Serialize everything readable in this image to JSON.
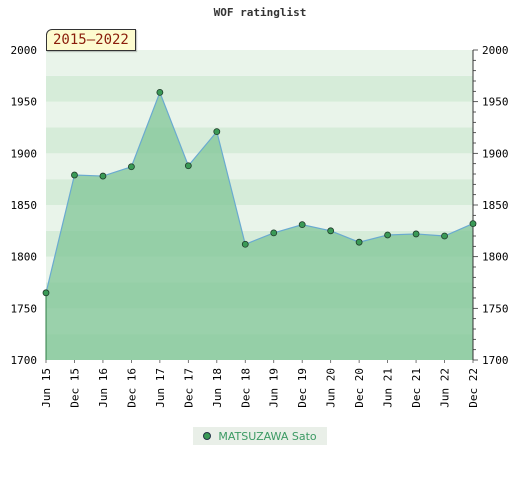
{
  "header": {
    "title": "WOF ratinglist"
  },
  "badge": {
    "text": "2015–2022"
  },
  "legend": {
    "label": "MATSUZAWA Sato"
  },
  "colors": {
    "fill": "#7cc493",
    "line": "#6aaad0",
    "marker": "#3a9a56"
  },
  "chart_data": {
    "type": "area",
    "title": "WOF ratinglist",
    "x": [
      "Jun 15",
      "Dec 15",
      "Jun 16",
      "Dec 16",
      "Jun 17",
      "Dec 17",
      "Jun 18",
      "Dec 18",
      "Jun 19",
      "Dec 19",
      "Jun 20",
      "Dec 20",
      "Jun 21",
      "Dec 21",
      "Jun 22",
      "Dec 22"
    ],
    "series": [
      {
        "name": "MATSUZAWA Sato",
        "values": [
          1765,
          1879,
          1878,
          1887,
          1959,
          1888,
          1921,
          1812,
          1823,
          1831,
          1825,
          1814,
          1821,
          1822,
          1820,
          1832
        ]
      }
    ],
    "ylim": [
      1700,
      2000
    ],
    "yticks": [
      1700,
      1750,
      1800,
      1850,
      1900,
      1950,
      2000
    ],
    "legend_position": "bottom-center",
    "grid": true
  }
}
